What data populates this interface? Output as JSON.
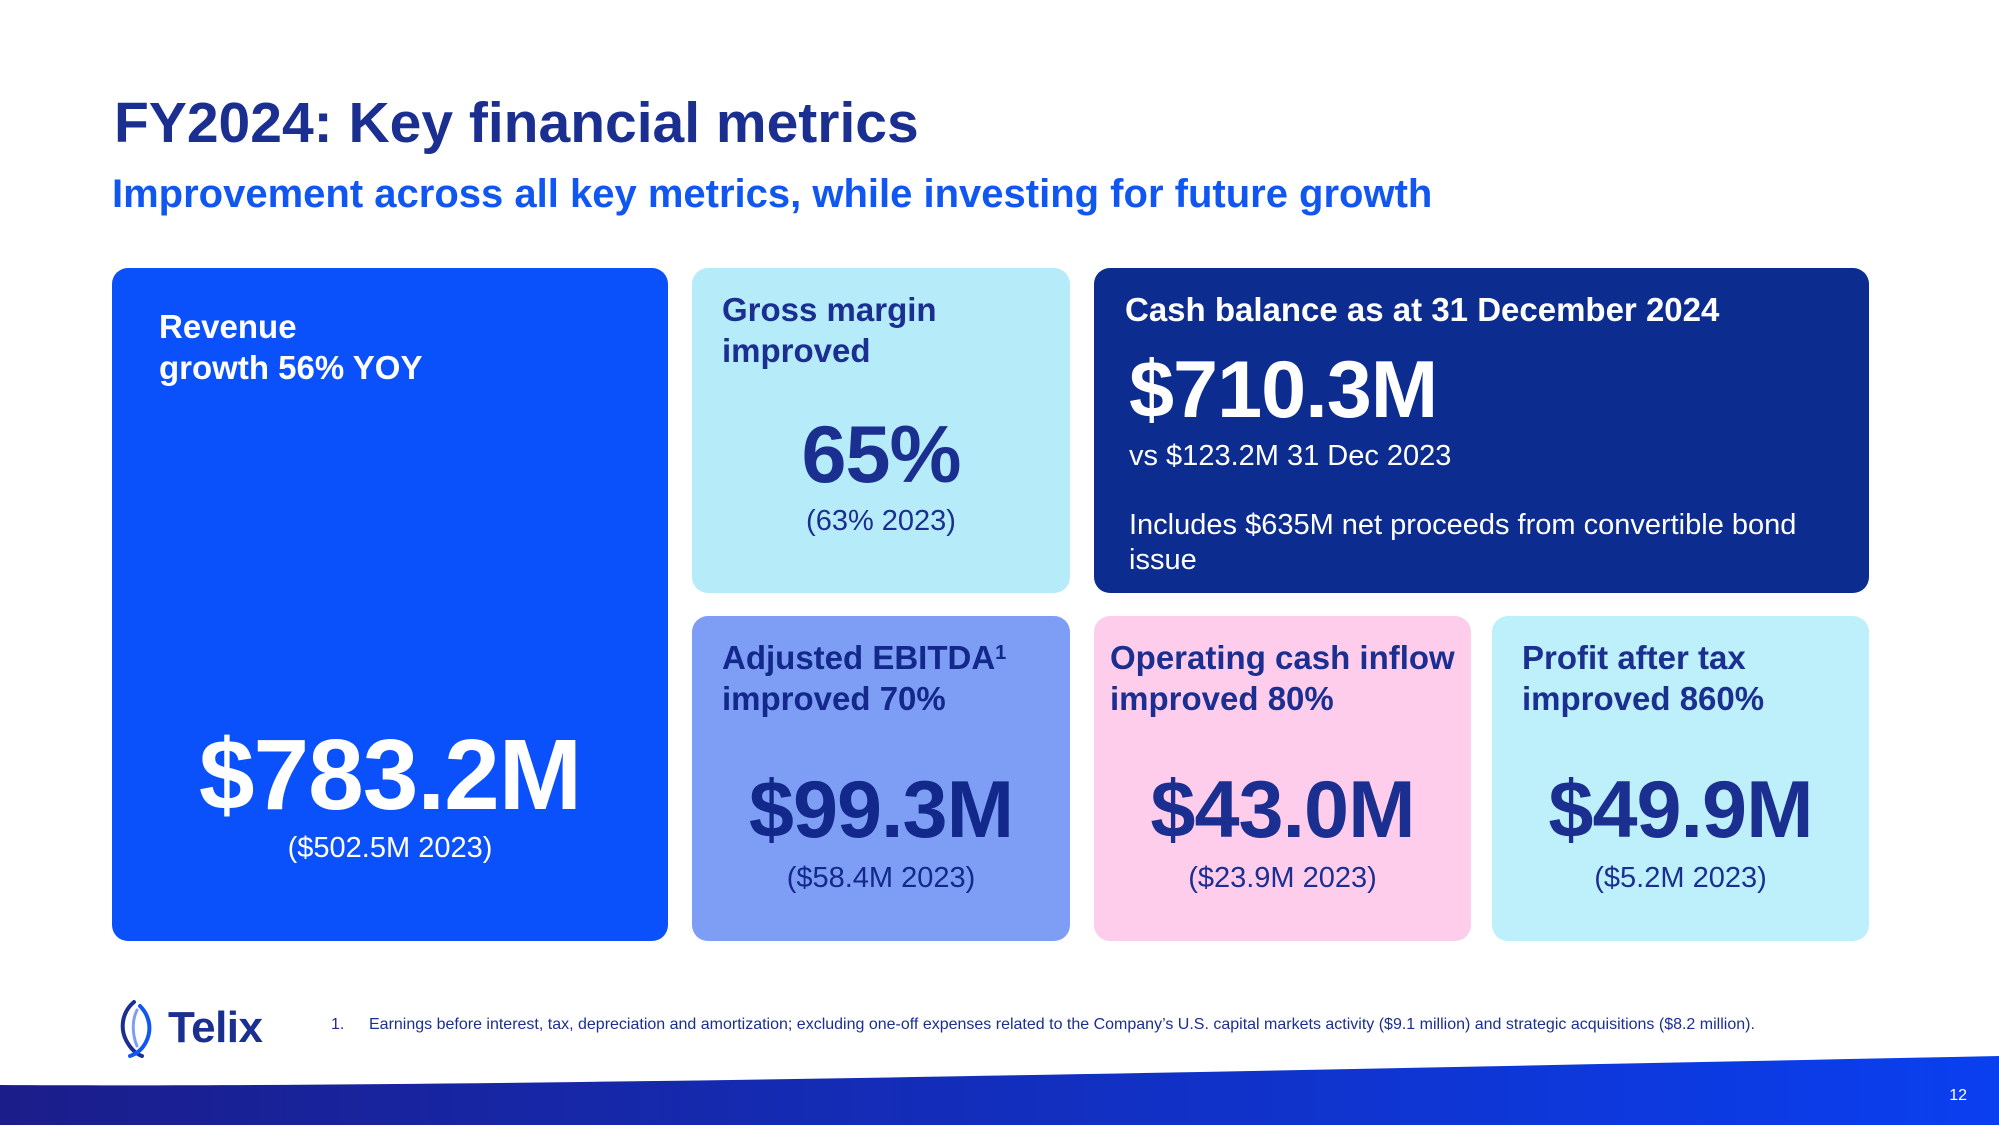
{
  "header": {
    "title": "FY2024: Key financial metrics",
    "subtitle": "Improvement across all key metrics, while investing for future growth"
  },
  "cards": {
    "revenue": {
      "heading_line1": "Revenue",
      "heading_line2": "growth 56% YOY",
      "value": "$783.2M",
      "prior": "($502.5M 2023)"
    },
    "gross_margin": {
      "heading_line1": "Gross margin",
      "heading_line2": "improved",
      "value": "65%",
      "prior": "(63% 2023)"
    },
    "cash_balance": {
      "heading": "Cash balance as at 31 December 2024",
      "value": "$710.3M",
      "comparison": "vs $123.2M 31 Dec 2023",
      "note": "Includes $635M net proceeds from convertible bond issue"
    },
    "ebitda": {
      "heading_line1": "Adjusted EBITDA",
      "footnote_ref": "1",
      "heading_line2": "improved 70%",
      "value": "$99.3M",
      "prior": "($58.4M 2023)"
    },
    "operating_cash": {
      "heading_line1": "Operating cash inflow",
      "heading_line2": "improved 80%",
      "value": "$43.0M",
      "prior": "($23.9M 2023)"
    },
    "profit": {
      "heading_line1": "Profit after tax",
      "heading_line2": "improved 860%",
      "value": "$49.9M",
      "prior": "($5.2M 2023)"
    }
  },
  "footer": {
    "logo_text": "Telix",
    "footnote_number": "1.",
    "footnote_text": "Earnings before interest, tax, depreciation and amortization; excluding one-off expenses related to the Company’s U.S. capital markets activity ($9.1 million) and strategic acquisitions ($8.2 million).",
    "page_number": "12"
  },
  "colors": {
    "navy": "#1b2f91",
    "bright_blue": "#0a50fb",
    "light_cyan": "#b6ecfa",
    "dark_navy": "#0d2c8f",
    "periwinkle": "#7e9df5",
    "pink": "#ffcdec",
    "pale_cyan": "#bdf0fb"
  }
}
